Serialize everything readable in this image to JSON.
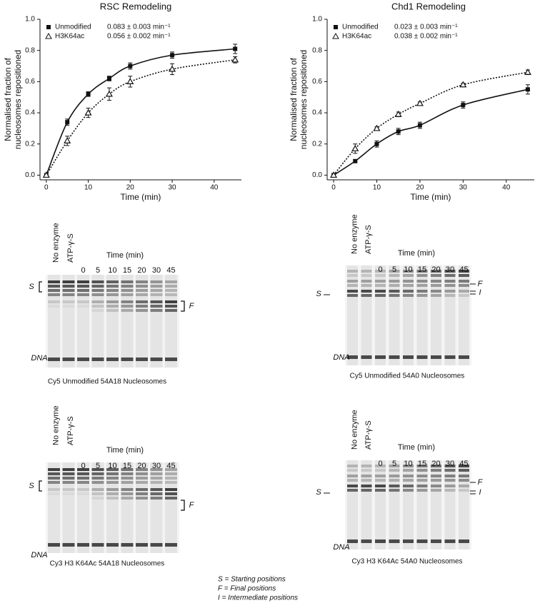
{
  "chart_data": [
    {
      "type": "scatter",
      "title": "RSC Remodeling",
      "xlabel": "Time (min)",
      "ylabel": [
        "Normalised fraction of",
        "nucleosomes repositioned"
      ],
      "x": [
        0,
        5,
        10,
        15,
        20,
        30,
        45
      ],
      "series": [
        {
          "name": "Unmodified",
          "rate_label": "0.083 ± 0.003 min⁻¹",
          "color": "#111111",
          "marker": "square",
          "line_style": "solid",
          "values": [
            0,
            0.34,
            0.52,
            0.62,
            0.7,
            0.77,
            0.81
          ],
          "errors": [
            null,
            0.02,
            0.015,
            0.015,
            0.02,
            0.02,
            0.03
          ]
        },
        {
          "name": "H3K64ac",
          "rate_label": "0.056 ± 0.002 min⁻¹",
          "color": "#111111",
          "marker": "triangle",
          "line_style": "dotted",
          "values": [
            0,
            0.22,
            0.4,
            0.52,
            0.6,
            0.68,
            0.74
          ],
          "errors": [
            null,
            0.03,
            0.03,
            0.04,
            0.035,
            0.035,
            0.02
          ]
        }
      ],
      "xlim": [
        -1.5,
        46.5
      ],
      "xticks": [
        0,
        10,
        20,
        30,
        40
      ],
      "ylim": [
        -0.03,
        1.0
      ],
      "yticks": [
        {
          "value": 0,
          "label": "0.0"
        },
        0.2,
        0.4,
        0.6,
        0.8,
        {
          "value": 1,
          "label": "1.0"
        }
      ]
    },
    {
      "type": "scatter",
      "title": "Chd1 Remodeling",
      "xlabel": "Time (min)",
      "ylabel": [
        "Normalised fraction of",
        "nucleosomes repositioned"
      ],
      "x": [
        0,
        5,
        10,
        15,
        20,
        30,
        45
      ],
      "series": [
        {
          "name": "Unmodified",
          "rate_label": "0.023 ± 0.003 min⁻¹",
          "color": "#111111",
          "marker": "square",
          "line_style": "solid",
          "values": [
            0,
            0.09,
            0.2,
            0.28,
            0.32,
            0.45,
            0.55
          ],
          "errors": [
            null,
            0.01,
            0.02,
            0.02,
            0.02,
            0.02,
            0.03
          ]
        },
        {
          "name": "H3K64ac",
          "rate_label": "0.038 ± 0.002 min⁻¹",
          "color": "#111111",
          "marker": "triangle",
          "line_style": "dotted",
          "values": [
            0,
            0.17,
            0.3,
            0.39,
            0.46,
            0.58,
            0.66
          ],
          "errors": [
            null,
            0.03,
            0.01,
            0.015,
            0.01,
            0.01,
            0.015
          ]
        }
      ],
      "xlim": [
        -1.5,
        46.5
      ],
      "xticks": [
        0,
        10,
        20,
        30,
        40
      ],
      "ylim": [
        -0.03,
        1.0
      ],
      "yticks": [
        {
          "value": 0,
          "label": "0.0"
        },
        0.2,
        0.4,
        0.6,
        0.8,
        {
          "value": 1,
          "label": "1.0"
        }
      ]
    }
  ],
  "gels": [
    {
      "lane_labels": [
        "No enzyme",
        "ATP-γ-S"
      ],
      "time_label": "Time (min)",
      "times": [
        0,
        5,
        10,
        15,
        20,
        30,
        45
      ],
      "markers": [
        "S",
        "F",
        "DNA"
      ],
      "caption": "Cy5 Unmodified 54A18 Nucleosomes"
    },
    {
      "lane_labels": [
        "No enzyme",
        "ATP-γ-S"
      ],
      "time_label": "Time (min)",
      "times": [
        0,
        5,
        10,
        15,
        20,
        30,
        45
      ],
      "markers": [
        "S",
        "F",
        "I",
        "DNA"
      ],
      "caption": "Cy5 Unmodified 54A0 Nucleosomes"
    },
    {
      "lane_labels": [
        "No enzyme",
        "ATP-γ-S"
      ],
      "time_label": "Time (min)",
      "times": [
        0,
        5,
        10,
        15,
        20,
        30,
        45
      ],
      "markers": [
        "S",
        "F",
        "DNA"
      ],
      "caption": "Cy3 H3 K64Ac 54A18 Nucleosomes"
    },
    {
      "lane_labels": [
        "No enzyme",
        "ATP-γ-S"
      ],
      "time_label": "Time (min)",
      "times": [
        0,
        5,
        10,
        15,
        20,
        30,
        45
      ],
      "markers": [
        "S",
        "F",
        "I",
        "DNA"
      ],
      "caption": "Cy3 H3 K64Ac 54A0 Nucleosomes"
    }
  ],
  "key": [
    "S = Starting positions",
    "F = Final positions",
    "I = Intermediate positions"
  ]
}
